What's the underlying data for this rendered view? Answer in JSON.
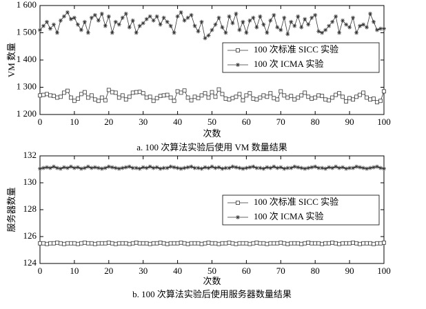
{
  "chart_data": [
    {
      "type": "line",
      "marker_style": "matlab",
      "xlabel": "次数",
      "ylabel": "VM 数量",
      "caption": "a. 100 次算法实验后使用 VM 数量结果",
      "x": [
        0,
        1,
        2,
        3,
        4,
        5,
        6,
        7,
        8,
        9,
        10,
        11,
        12,
        13,
        14,
        15,
        16,
        17,
        18,
        19,
        20,
        21,
        22,
        23,
        24,
        25,
        26,
        27,
        28,
        29,
        30,
        31,
        32,
        33,
        34,
        35,
        36,
        37,
        38,
        39,
        40,
        41,
        42,
        43,
        44,
        45,
        46,
        47,
        48,
        49,
        50,
        51,
        52,
        53,
        54,
        55,
        56,
        57,
        58,
        59,
        60,
        61,
        62,
        63,
        64,
        65,
        66,
        67,
        68,
        69,
        70,
        71,
        72,
        73,
        74,
        75,
        76,
        77,
        78,
        79,
        80,
        81,
        82,
        83,
        84,
        85,
        86,
        87,
        88,
        89,
        90,
        91,
        92,
        93,
        94,
        95,
        96,
        97,
        98,
        99,
        100
      ],
      "xlim": [
        0,
        100
      ],
      "xticks": [
        0,
        10,
        20,
        30,
        40,
        50,
        60,
        70,
        80,
        90,
        100
      ],
      "ylim": [
        1200,
        1600
      ],
      "yticks": [
        {
          "value": 1200,
          "label": "1 200"
        },
        {
          "value": 1300,
          "label": "1 300"
        },
        {
          "value": 1400,
          "label": "1 400"
        },
        {
          "value": 1500,
          "label": "1 500"
        },
        {
          "value": 1600,
          "label": "1 600"
        }
      ],
      "grid": false,
      "legend": "upper right",
      "series": [
        {
          "name": "100 次标准 SICC 实验",
          "color": "#333333",
          "marker": "square",
          "values": [
            1270,
            1272,
            1275,
            1270,
            1268,
            1262,
            1265,
            1280,
            1287,
            1262,
            1250,
            1258,
            1275,
            1282,
            1262,
            1270,
            1255,
            1250,
            1262,
            1252,
            1290,
            1282,
            1280,
            1262,
            1270,
            1255,
            1265,
            1280,
            1282,
            1283,
            1278,
            1262,
            1265,
            1250,
            1260,
            1268,
            1270,
            1272,
            1262,
            1250,
            1285,
            1280,
            1288,
            1262,
            1252,
            1265,
            1260,
            1270,
            1278,
            1262,
            1282,
            1265,
            1292,
            1275,
            1258,
            1255,
            1260,
            1265,
            1275,
            1252,
            1270,
            1278,
            1258,
            1255,
            1262,
            1270,
            1265,
            1278,
            1260,
            1255,
            1285,
            1270,
            1262,
            1268,
            1255,
            1262,
            1270,
            1280,
            1265,
            1258,
            1262,
            1270,
            1268,
            1255,
            1252,
            1262,
            1272,
            1278,
            1265,
            1248,
            1260,
            1255,
            1265,
            1272,
            1280,
            1262,
            1255,
            1258,
            1245,
            1250,
            1285
          ]
        },
        {
          "name": "100 次 ICMA 实验",
          "color": "#333333",
          "marker": "star",
          "values": [
            1510,
            1525,
            1540,
            1515,
            1530,
            1500,
            1545,
            1560,
            1575,
            1550,
            1555,
            1530,
            1510,
            1540,
            1500,
            1555,
            1565,
            1545,
            1570,
            1525,
            1560,
            1500,
            1540,
            1530,
            1555,
            1570,
            1520,
            1545,
            1500,
            1525,
            1535,
            1550,
            1560,
            1545,
            1560,
            1530,
            1555,
            1540,
            1525,
            1500,
            1560,
            1575,
            1545,
            1555,
            1565,
            1525,
            1505,
            1540,
            1480,
            1490,
            1510,
            1530,
            1555,
            1520,
            1500,
            1560,
            1535,
            1570,
            1510,
            1540,
            1500,
            1545,
            1555,
            1520,
            1560,
            1530,
            1500,
            1545,
            1565,
            1520,
            1510,
            1555,
            1495,
            1540,
            1525,
            1560,
            1520,
            1550,
            1530,
            1555,
            1565,
            1505,
            1500,
            1510,
            1525,
            1540,
            1560,
            1500,
            1545,
            1530,
            1520,
            1555,
            1500,
            1525,
            1530,
            1520,
            1570,
            1540,
            1510,
            1515,
            1515
          ]
        }
      ]
    },
    {
      "type": "line",
      "marker_style": "matlab",
      "xlabel": "次数",
      "ylabel": "服务器数量",
      "caption": "b. 100 次算法实验后使用服务器数量结果",
      "x": [
        0,
        1,
        2,
        3,
        4,
        5,
        6,
        7,
        8,
        9,
        10,
        11,
        12,
        13,
        14,
        15,
        16,
        17,
        18,
        19,
        20,
        21,
        22,
        23,
        24,
        25,
        26,
        27,
        28,
        29,
        30,
        31,
        32,
        33,
        34,
        35,
        36,
        37,
        38,
        39,
        40,
        41,
        42,
        43,
        44,
        45,
        46,
        47,
        48,
        49,
        50,
        51,
        52,
        53,
        54,
        55,
        56,
        57,
        58,
        59,
        60,
        61,
        62,
        63,
        64,
        65,
        66,
        67,
        68,
        69,
        70,
        71,
        72,
        73,
        74,
        75,
        76,
        77,
        78,
        79,
        80,
        81,
        82,
        83,
        84,
        85,
        86,
        87,
        88,
        89,
        90,
        91,
        92,
        93,
        94,
        95,
        96,
        97,
        98,
        99,
        100
      ],
      "xlim": [
        0,
        100
      ],
      "xticks": [
        0,
        10,
        20,
        30,
        40,
        50,
        60,
        70,
        80,
        90,
        100
      ],
      "ylim": [
        124,
        132
      ],
      "yticks": [
        124,
        126,
        128,
        130,
        132
      ],
      "grid": false,
      "legend": "center right",
      "series": [
        {
          "name": "100 次标准 SICC 实验",
          "color": "#333333",
          "marker": "square",
          "values": [
            125.5,
            125.5,
            125.45,
            125.5,
            125.5,
            125.55,
            125.5,
            125.45,
            125.5,
            125.5,
            125.5,
            125.45,
            125.5,
            125.55,
            125.5,
            125.5,
            125.45,
            125.5,
            125.5,
            125.5,
            125.55,
            125.5,
            125.45,
            125.5,
            125.5,
            125.5,
            125.45,
            125.5,
            125.55,
            125.5,
            125.5,
            125.5,
            125.45,
            125.5,
            125.5,
            125.55,
            125.5,
            125.45,
            125.5,
            125.5,
            125.5,
            125.55,
            125.5,
            125.45,
            125.5,
            125.5,
            125.5,
            125.45,
            125.5,
            125.55,
            125.5,
            125.5,
            125.45,
            125.5,
            125.5,
            125.55,
            125.5,
            125.45,
            125.5,
            125.5,
            125.5,
            125.45,
            125.5,
            125.55,
            125.5,
            125.5,
            125.45,
            125.5,
            125.5,
            125.5,
            125.55,
            125.5,
            125.45,
            125.5,
            125.5,
            125.5,
            125.45,
            125.5,
            125.55,
            125.5,
            125.5,
            125.5,
            125.45,
            125.5,
            125.5,
            125.55,
            125.5,
            125.45,
            125.5,
            125.5,
            125.5,
            125.55,
            125.5,
            125.45,
            125.5,
            125.5,
            125.5,
            125.45,
            125.5,
            125.5,
            125.55
          ]
        },
        {
          "name": "100 次 ICMA 实验",
          "color": "#333333",
          "marker": "star",
          "values": [
            131.05,
            131.1,
            131.15,
            131.1,
            131.2,
            131.1,
            131.05,
            131.15,
            131.1,
            131.2,
            131.1,
            131.15,
            131.05,
            131.1,
            131.2,
            131.1,
            131.15,
            131.1,
            131.05,
            131.1,
            131.2,
            131.15,
            131.1,
            131.05,
            131.1,
            131.15,
            131.2,
            131.1,
            131.1,
            131.05,
            131.15,
            131.1,
            131.2,
            131.1,
            131.15,
            131.05,
            131.1,
            131.1,
            131.2,
            131.15,
            131.1,
            131.05,
            131.1,
            131.15,
            131.2,
            131.1,
            131.1,
            131.05,
            131.15,
            131.1,
            131.2,
            131.1,
            131.15,
            131.05,
            131.1,
            131.1,
            131.2,
            131.15,
            131.1,
            131.05,
            131.1,
            131.15,
            131.2,
            131.1,
            131.1,
            131.05,
            131.15,
            131.1,
            131.2,
            131.1,
            131.15,
            131.05,
            131.1,
            131.1,
            131.2,
            131.15,
            131.1,
            131.05,
            131.1,
            131.15,
            131.2,
            131.1,
            131.1,
            131.05,
            131.15,
            131.1,
            131.2,
            131.1,
            131.15,
            131.05,
            131.1,
            131.1,
            131.2,
            131.15,
            131.1,
            131.05,
            131.1,
            131.15,
            131.2,
            131.1,
            131.05
          ]
        }
      ]
    }
  ]
}
